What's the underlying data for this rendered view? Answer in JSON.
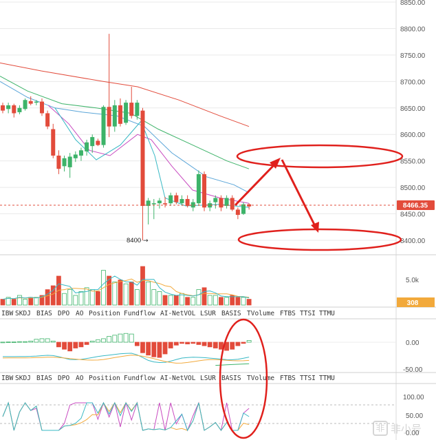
{
  "chart_data": {
    "type": "candlestick",
    "price_axis": {
      "ticks": [
        "8850.00",
        "8800.00",
        "8750.00",
        "8700.00",
        "8650.00",
        "8600.00",
        "8550.00",
        "8500.00",
        "8450.00",
        "8400.00"
      ],
      "range": [
        8380,
        8855
      ]
    },
    "current_price_label": "8466.35",
    "low_marker_label": "8400",
    "candles": [
      {
        "o": 8655,
        "h": 8660,
        "l": 8640,
        "c": 8645
      },
      {
        "o": 8648,
        "h": 8660,
        "l": 8640,
        "c": 8655
      },
      {
        "o": 8655,
        "h": 8658,
        "l": 8632,
        "c": 8640
      },
      {
        "o": 8642,
        "h": 8655,
        "l": 8638,
        "c": 8650
      },
      {
        "o": 8648,
        "h": 8668,
        "l": 8645,
        "c": 8665
      },
      {
        "o": 8663,
        "h": 8672,
        "l": 8655,
        "c": 8658
      },
      {
        "o": 8660,
        "h": 8665,
        "l": 8655,
        "c": 8662
      },
      {
        "o": 8662,
        "h": 8668,
        "l": 8635,
        "c": 8640
      },
      {
        "o": 8640,
        "h": 8645,
        "l": 8610,
        "c": 8615
      },
      {
        "o": 8610,
        "h": 8620,
        "l": 8555,
        "c": 8560
      },
      {
        "o": 8560,
        "h": 8570,
        "l": 8525,
        "c": 8535
      },
      {
        "o": 8540,
        "h": 8560,
        "l": 8530,
        "c": 8555
      },
      {
        "o": 8538,
        "h": 8565,
        "l": 8518,
        "c": 8558
      },
      {
        "o": 8555,
        "h": 8568,
        "l": 8548,
        "c": 8562
      },
      {
        "o": 8560,
        "h": 8575,
        "l": 8550,
        "c": 8570
      },
      {
        "o": 8568,
        "h": 8590,
        "l": 8560,
        "c": 8585
      },
      {
        "o": 8578,
        "h": 8600,
        "l": 8565,
        "c": 8595
      },
      {
        "o": 8588,
        "h": 8592,
        "l": 8578,
        "c": 8580
      },
      {
        "o": 8580,
        "h": 8655,
        "l": 8575,
        "c": 8652
      },
      {
        "o": 8652,
        "h": 8790,
        "l": 8595,
        "c": 8615
      },
      {
        "o": 8615,
        "h": 8665,
        "l": 8605,
        "c": 8655
      },
      {
        "o": 8655,
        "h": 8668,
        "l": 8615,
        "c": 8620
      },
      {
        "o": 8622,
        "h": 8665,
        "l": 8618,
        "c": 8660
      },
      {
        "o": 8660,
        "h": 8690,
        "l": 8630,
        "c": 8635
      },
      {
        "o": 8635,
        "h": 8665,
        "l": 8628,
        "c": 8660
      },
      {
        "o": 8645,
        "h": 8650,
        "l": 8400,
        "c": 8465
      },
      {
        "o": 8465,
        "h": 8480,
        "l": 8430,
        "c": 8475
      },
      {
        "o": 8468,
        "h": 8478,
        "l": 8440,
        "c": 8470
      },
      {
        "o": 8470,
        "h": 8480,
        "l": 8460,
        "c": 8475
      },
      {
        "o": 8470,
        "h": 8482,
        "l": 8462,
        "c": 8468
      },
      {
        "o": 8470,
        "h": 8490,
        "l": 8465,
        "c": 8485
      },
      {
        "o": 8485,
        "h": 8490,
        "l": 8468,
        "c": 8472
      },
      {
        "o": 8470,
        "h": 8485,
        "l": 8465,
        "c": 8478
      },
      {
        "o": 8478,
        "h": 8485,
        "l": 8462,
        "c": 8465
      },
      {
        "o": 8462,
        "h": 8478,
        "l": 8455,
        "c": 8472
      },
      {
        "o": 8470,
        "h": 8532,
        "l": 8465,
        "c": 8525
      },
      {
        "o": 8525,
        "h": 8530,
        "l": 8455,
        "c": 8462
      },
      {
        "o": 8462,
        "h": 8475,
        "l": 8455,
        "c": 8470
      },
      {
        "o": 8472,
        "h": 8485,
        "l": 8460,
        "c": 8480
      },
      {
        "o": 8480,
        "h": 8485,
        "l": 8455,
        "c": 8462
      },
      {
        "o": 8465,
        "h": 8485,
        "l": 8460,
        "c": 8480
      },
      {
        "o": 8480,
        "h": 8485,
        "l": 8455,
        "c": 8458
      },
      {
        "o": 8458,
        "h": 8462,
        "l": 8440,
        "c": 8448
      },
      {
        "o": 8450,
        "h": 8472,
        "l": 8448,
        "c": 8468
      },
      {
        "o": 8468,
        "h": 8470,
        "l": 8458,
        "c": 8464
      }
    ],
    "moving_averages": [
      {
        "color": "#e24b3b",
        "values": [
          [
            0,
            8735
          ],
          [
            60,
            8720
          ],
          [
            150,
            8700
          ],
          [
            200,
            8690
          ],
          [
            260,
            8665
          ],
          [
            320,
            8635
          ],
          [
            362,
            8615
          ]
        ]
      },
      {
        "color": "#3db369",
        "values": [
          [
            0,
            8710
          ],
          [
            40,
            8682
          ],
          [
            90,
            8658
          ],
          [
            140,
            8650
          ],
          [
            190,
            8640
          ],
          [
            230,
            8610
          ],
          [
            280,
            8580
          ],
          [
            330,
            8550
          ],
          [
            362,
            8535
          ]
        ]
      },
      {
        "color": "#5aa5d8",
        "values": [
          [
            0,
            8700
          ],
          [
            40,
            8670
          ],
          [
            80,
            8650
          ],
          [
            120,
            8642
          ],
          [
            170,
            8635
          ],
          [
            210,
            8615
          ],
          [
            250,
            8565
          ],
          [
            300,
            8520
          ],
          [
            340,
            8505
          ],
          [
            362,
            8490
          ]
        ]
      },
      {
        "color": "#c84ac0",
        "values": [
          [
            70,
            8655
          ],
          [
            100,
            8620
          ],
          [
            130,
            8570
          ],
          [
            160,
            8560
          ],
          [
            200,
            8600
          ],
          [
            220,
            8590
          ],
          [
            250,
            8540
          ],
          [
            280,
            8495
          ],
          [
            320,
            8480
          ],
          [
            362,
            8470
          ]
        ]
      },
      {
        "color": "#37b8c4",
        "values": [
          [
            80,
            8650
          ],
          [
            110,
            8590
          ],
          [
            140,
            8552
          ],
          [
            175,
            8580
          ],
          [
            205,
            8625
          ],
          [
            225,
            8560
          ],
          [
            240,
            8480
          ],
          [
            270,
            8465
          ],
          [
            320,
            8468
          ],
          [
            362,
            8462
          ]
        ]
      }
    ],
    "volume_panel": {
      "tick": "5.0k",
      "current_value_label": "308",
      "values": [
        0.3,
        0.4,
        0.3,
        0.5,
        0.3,
        0.4,
        0.4,
        0.5,
        0.8,
        1.0,
        1.5,
        0.6,
        0.8,
        0.5,
        0.7,
        0.9,
        0.8,
        0.7,
        1.8,
        1.5,
        1.2,
        1.3,
        1.1,
        1.2,
        0.8,
        2.0,
        1.2,
        0.8,
        0.7,
        0.5,
        0.5,
        0.5,
        0.6,
        0.4,
        0.4,
        0.8,
        0.9,
        0.5,
        0.5,
        0.4,
        0.4,
        0.5,
        0.4,
        0.4,
        0.3
      ]
    },
    "indicator_tabs": [
      "IBW",
      "SKDJ",
      "BIAS",
      "DPO",
      "AO",
      "Position",
      "Fundflow",
      "AI-NetVOL",
      "LSUR",
      "BASIS",
      "TVolume",
      "FTBS",
      "TTSI",
      "TTMU"
    ],
    "histogram_panel": {
      "ticks": [
        "0.00",
        "-50.00"
      ],
      "values": [
        0.2,
        0.5,
        0.5,
        1,
        1,
        2,
        5,
        6,
        6,
        2,
        -8,
        -12,
        -15,
        -10,
        -8,
        -4,
        2,
        4,
        6,
        10,
        12,
        14,
        15,
        14,
        -6,
        -18,
        -22,
        -25,
        -26,
        -20,
        -10,
        -5,
        -2,
        -3,
        -2,
        -4,
        -6,
        -8,
        -10,
        -12,
        -14,
        -12,
        -6,
        -2,
        3
      ]
    },
    "oscillator_panel": {
      "ticks": [
        "100.00",
        "50.00",
        "0.00"
      ]
    }
  },
  "watermark": {
    "mark": "非",
    "text": "非小号"
  },
  "colors": {
    "up": "#3db369",
    "down": "#e24b3b",
    "grid": "#e9e9e9",
    "price_tag": "#e24b3b",
    "vol_tag": "#f2a93b"
  }
}
